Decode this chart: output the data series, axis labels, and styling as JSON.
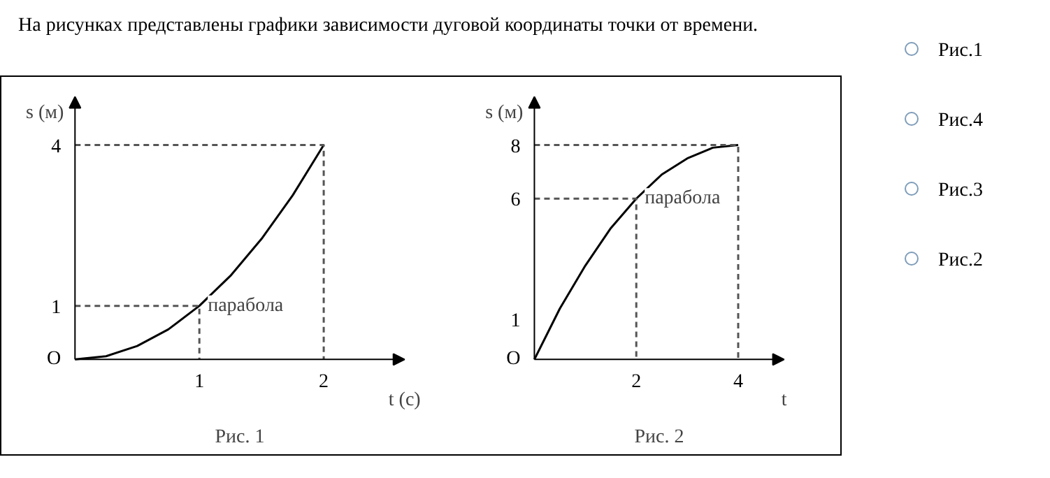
{
  "chart_data": [
    {
      "type": "other",
      "annotations": [
        "На рисунках представлены графики зависимости дуговой координаты точки от времени."
      ]
    },
    {
      "type": "line",
      "title": "Рис. 1",
      "xlabel": "t (с)",
      "ylabel": "s (м)",
      "xlim": [
        0,
        2.65
      ],
      "ylim": [
        0,
        4.9
      ],
      "xticks": [
        1,
        2
      ],
      "yticks": [
        1,
        4
      ],
      "grid": false,
      "marker": "none",
      "series": [
        {
          "color": "#000000",
          "x": [
            0,
            0.25,
            0.5,
            0.75,
            1,
            1.25,
            1.5,
            1.75,
            2
          ],
          "values": [
            0,
            0.06,
            0.25,
            0.56,
            1,
            1.56,
            2.25,
            3.06,
            4
          ]
        },
        {
          "color": "#555555",
          "line_style": "dashed",
          "x": [
            0,
            1,
            1
          ],
          "values": [
            1,
            1,
            0
          ]
        },
        {
          "color": "#555555",
          "line_style": "dashed",
          "x": [
            0,
            2,
            2
          ],
          "values": [
            4,
            4,
            0
          ]
        }
      ],
      "annotations": [
        "парабола",
        {
          "text": "O",
          "x": 0,
          "y": 0
        }
      ]
    },
    {
      "type": "line",
      "title": "Рис. 2",
      "xlabel": "t",
      "ylabel": "s (м)",
      "xlim": [
        0,
        4.9
      ],
      "ylim": [
        0,
        9.8
      ],
      "xticks": [
        2,
        4
      ],
      "yticks": [
        {
          "value": 1.5,
          "label": "1"
        },
        6,
        8
      ],
      "grid": false,
      "marker": "none",
      "series": [
        {
          "color": "#000000",
          "x": [
            0,
            0.5,
            1,
            1.5,
            2,
            2.5,
            3,
            3.5,
            4
          ],
          "values": [
            0,
            1.9,
            3.5,
            4.9,
            6,
            6.9,
            7.5,
            7.9,
            8
          ]
        },
        {
          "color": "#555555",
          "line_style": "dashed",
          "x": [
            0,
            2,
            2
          ],
          "values": [
            6,
            6,
            0
          ]
        },
        {
          "color": "#555555",
          "line_style": "dashed",
          "x": [
            0,
            4,
            4
          ],
          "values": [
            8,
            8,
            0
          ]
        }
      ],
      "annotations": [
        "парабола",
        {
          "text": "O",
          "x": 0,
          "y": 0
        }
      ]
    },
    {
      "type": "other",
      "annotations": [
        "Рис.1",
        "Рис.4",
        "Рис.3",
        "Рис.2"
      ]
    }
  ]
}
